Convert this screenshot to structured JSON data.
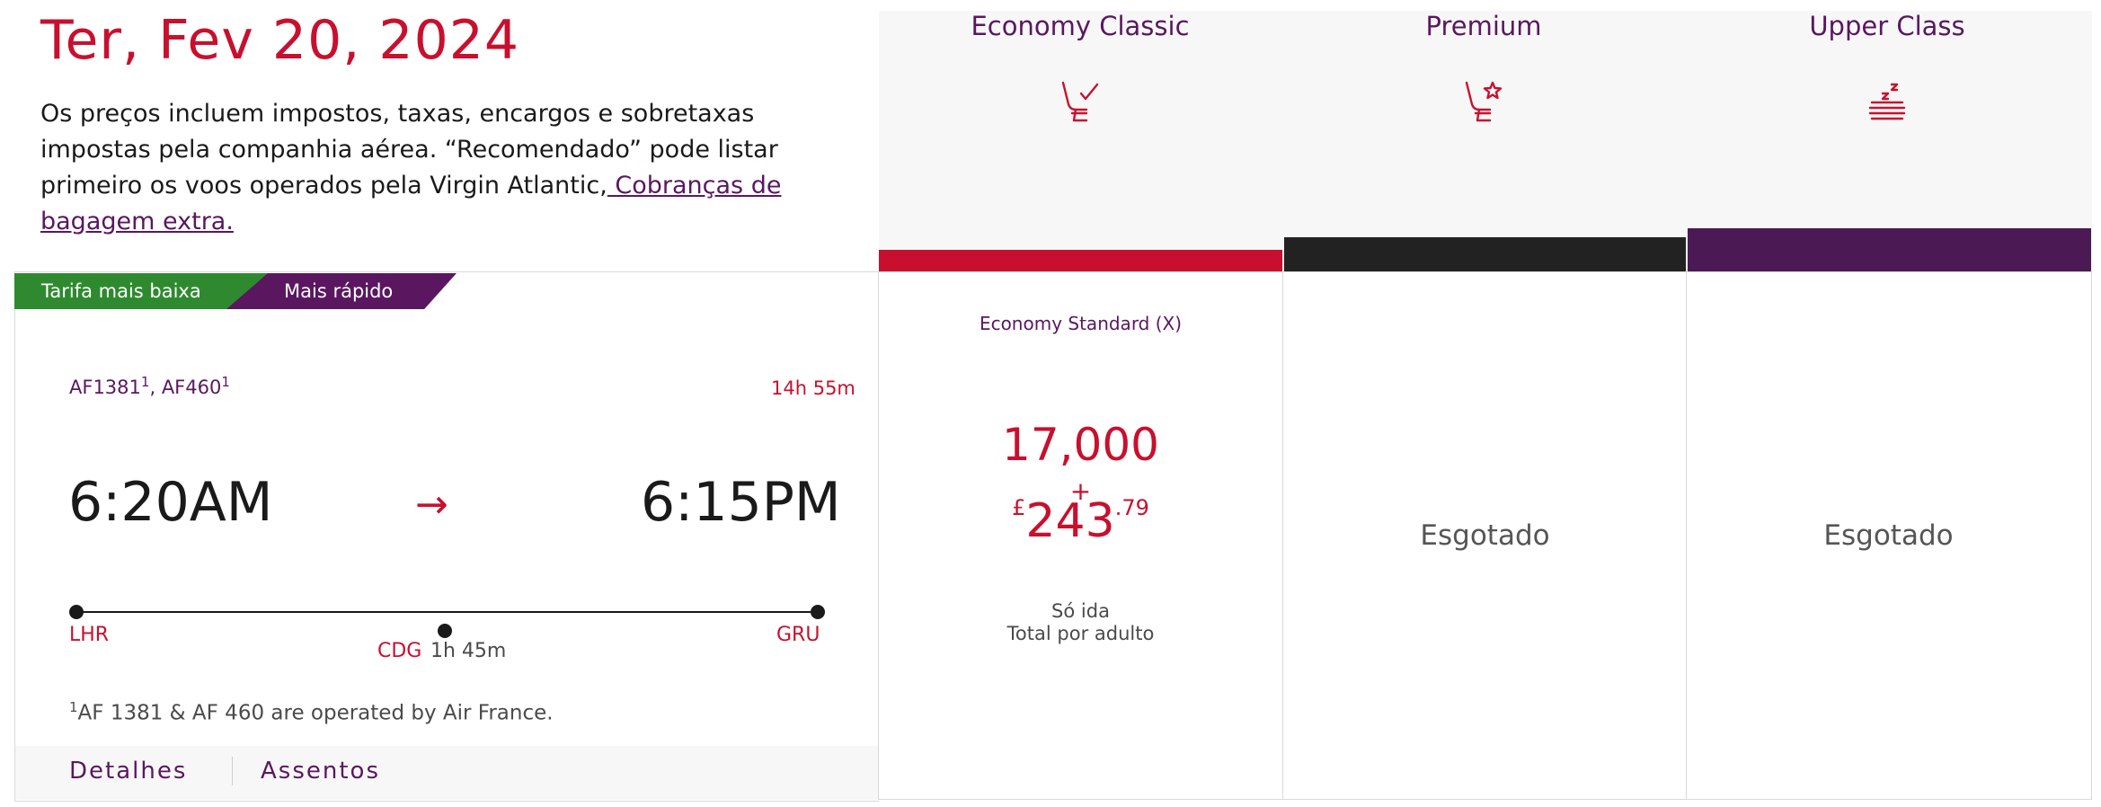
{
  "header": {
    "date": "Ter, Fev 20, 2024",
    "disclaimer_text": "Os preços incluem impostos, taxas, encargos e sobretaxas impostas pela companhia aérea. “Recomendado” pode listar primeiro os voos operados pela Virgin Atlantic,",
    "disclaimer_link": " Cobranças de bagagem extra."
  },
  "cabins": [
    {
      "title": "Economy Classic",
      "icon": "seat-check-icon",
      "color": "#c8102e"
    },
    {
      "title": "Premium",
      "icon": "seat-star-icon",
      "color": "#222222"
    },
    {
      "title": "Upper Class",
      "icon": "flatbed-zzz-icon",
      "color": "#4b1a55"
    }
  ],
  "flight": {
    "tags": {
      "lowest": "Tarifa mais baixa",
      "fastest": "Mais rápido"
    },
    "code_1": "AF1381",
    "code_1_sup": "1",
    "comma": ",",
    "code_2": "AF460",
    "code_2_sup": "1",
    "duration": "14h 55m",
    "departure_time": "6:20AM",
    "arrival_time": "6:15PM",
    "origin": "LHR",
    "stop": "CDG",
    "layover": "1h  45m",
    "destination": "GRU",
    "footnote_sup": "1",
    "footnote": "AF 1381 & AF 460 are operated by Air France.",
    "details_label": "Detalhes",
    "seats_label": "Assentos"
  },
  "fares": {
    "economy": {
      "fare_type": "Economy Standard (X)",
      "miles": "17,000",
      "plus": "+",
      "currency": "£",
      "amount": "243",
      "cents": ".79",
      "trip_type": "Só ida",
      "per_adult": "Total por adulto"
    },
    "premium": {
      "status": "Esgotado"
    },
    "upper": {
      "status": "Esgotado"
    }
  },
  "colors": {
    "accent_red": "#c8102e",
    "brand_purple": "#5a1760",
    "green_tag": "#2f8a2f"
  }
}
